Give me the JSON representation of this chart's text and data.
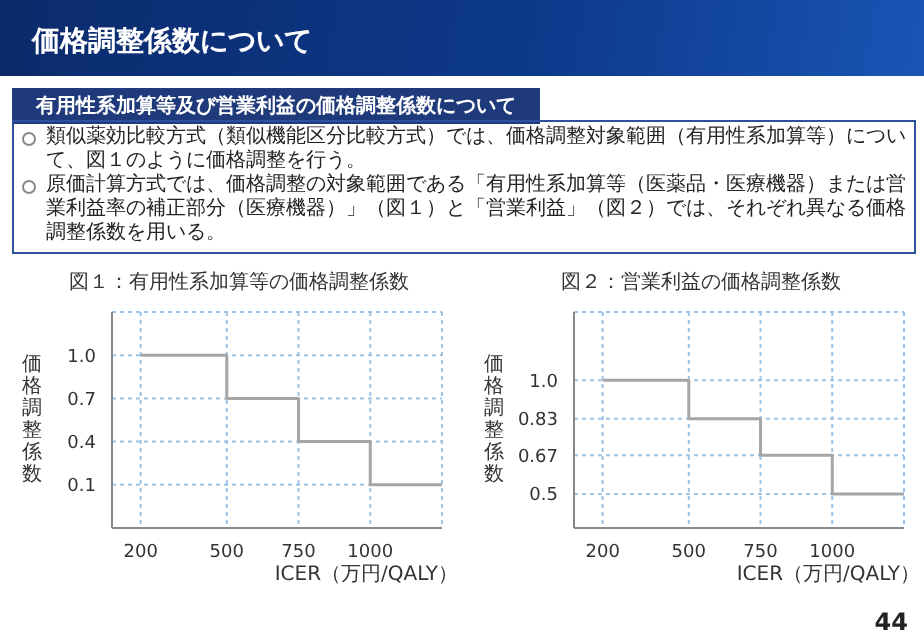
{
  "chart_data": [
    {
      "type": "other",
      "title": "価格調整係数について",
      "subtitle": "有用性系加算等及び営業利益の価格調整係数について",
      "annotations": [
        "類似薬効比較方式（類似機能区分比較方式）では、価格調整対象範囲（有用性系加算等）について、図１のように価格調整を行う。",
        "原価計算方式では、価格調整の対象範囲である「有用性系加算等（医薬品・医療機器）または営業利益率の補正部分（医療機器）」（図１）と「営業利益」（図２）では、それぞれ異なる価格調整係数を用いる。",
        "44"
      ]
    },
    {
      "type": "step",
      "title": "図１：有用性系加算等の価格調整係数",
      "xlabel": "ICER（万円/QALY）",
      "ylabel": "価格調整係数",
      "x": [
        200,
        500,
        750,
        1000,
        1250
      ],
      "series": [
        {
          "color": "#a6a6a6",
          "values": [
            1.0,
            0.7,
            0.4,
            0.1,
            0.1
          ]
        }
      ],
      "xlim": [
        100,
        1250
      ],
      "xticks": [
        200,
        500,
        750,
        1000
      ],
      "ylim": [
        -0.2,
        1.3
      ],
      "yticks": [
        0.1,
        0.4,
        0.7,
        {
          "value": 1,
          "label": "1.0"
        }
      ],
      "grid": true
    },
    {
      "type": "step",
      "title": "図２：営業利益の価格調整係数",
      "xlabel": "ICER（万円/QALY）",
      "ylabel": "価格調整係数",
      "x": [
        200,
        500,
        750,
        1000,
        1250
      ],
      "series": [
        {
          "color": "#a6a6a6",
          "values": [
            1.0,
            0.83,
            0.67,
            0.5,
            0.5
          ]
        }
      ],
      "xlim": [
        100,
        1250
      ],
      "xticks": [
        200,
        500,
        750,
        1000
      ],
      "ylim": [
        0.35,
        1.3
      ],
      "yticks": [
        0.5,
        0.67,
        0.83,
        {
          "value": 1,
          "label": "1.0"
        }
      ],
      "grid": true
    }
  ]
}
